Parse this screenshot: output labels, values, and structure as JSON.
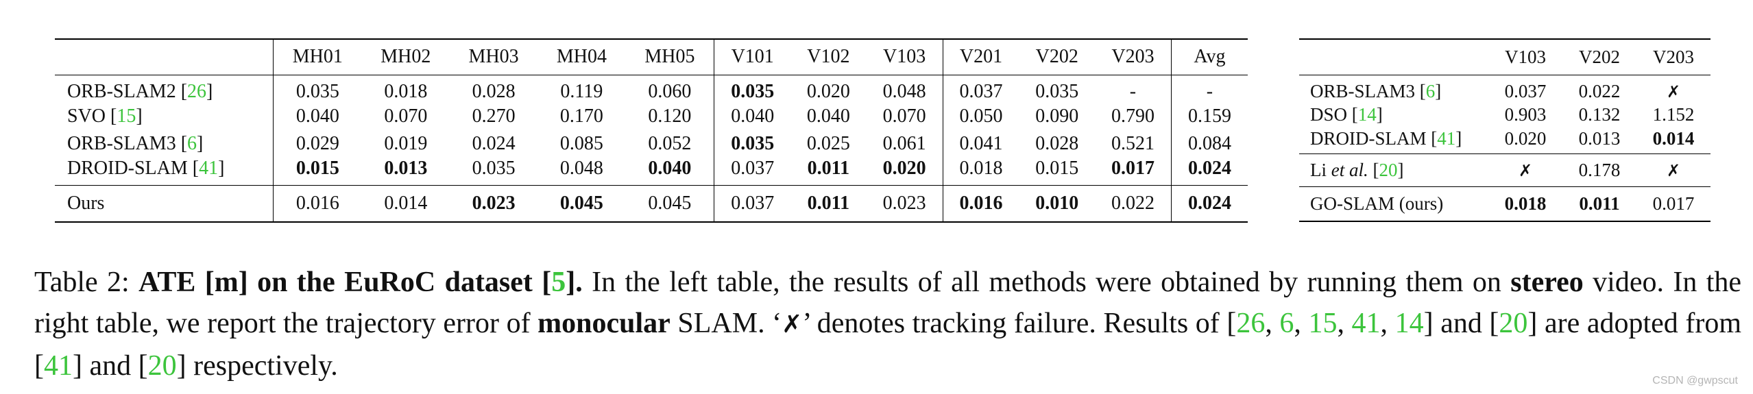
{
  "left_table": {
    "columns": [
      "MH01",
      "MH02",
      "MH03",
      "MH04",
      "MH05",
      "V101",
      "V102",
      "V103",
      "V201",
      "V202",
      "V203",
      "Avg"
    ],
    "rows": [
      {
        "method": "ORB-SLAM2",
        "ref": "26",
        "values": [
          "0.035",
          "0.018",
          "0.028",
          "0.119",
          "0.060",
          "0.035",
          "0.020",
          "0.048",
          "0.037",
          "0.035",
          "-",
          "-"
        ],
        "bold": [
          5
        ]
      },
      {
        "method": "SVO",
        "ref": "15",
        "values": [
          "0.040",
          "0.070",
          "0.270",
          "0.170",
          "0.120",
          "0.040",
          "0.040",
          "0.070",
          "0.050",
          "0.090",
          "0.790",
          "0.159"
        ],
        "bold": []
      },
      {
        "method": "ORB-SLAM3",
        "ref": "6",
        "values": [
          "0.029",
          "0.019",
          "0.024",
          "0.085",
          "0.052",
          "0.035",
          "0.025",
          "0.061",
          "0.041",
          "0.028",
          "0.521",
          "0.084"
        ],
        "bold": [
          5
        ]
      },
      {
        "method": "DROID-SLAM",
        "ref": "41",
        "values": [
          "0.015",
          "0.013",
          "0.035",
          "0.048",
          "0.040",
          "0.037",
          "0.011",
          "0.020",
          "0.018",
          "0.015",
          "0.017",
          "0.024"
        ],
        "bold": [
          0,
          1,
          4,
          6,
          7,
          10,
          11
        ]
      }
    ],
    "ours": {
      "method": "Ours",
      "values": [
        "0.016",
        "0.014",
        "0.023",
        "0.045",
        "0.045",
        "0.037",
        "0.011",
        "0.023",
        "0.016",
        "0.010",
        "0.022",
        "0.024"
      ],
      "bold": [
        2,
        3,
        6,
        8,
        9,
        11
      ]
    }
  },
  "right_table": {
    "columns": [
      "V103",
      "V202",
      "V203"
    ],
    "group1": [
      {
        "method": "ORB-SLAM3",
        "ref": "6",
        "values": [
          "0.037",
          "0.022",
          "✗"
        ],
        "bold": []
      },
      {
        "method": "DSO",
        "ref": "14",
        "values": [
          "0.903",
          "0.132",
          "1.152"
        ],
        "bold": []
      },
      {
        "method": "DROID-SLAM",
        "ref": "41",
        "values": [
          "0.020",
          "0.013",
          "0.014"
        ],
        "bold": [
          2
        ]
      }
    ],
    "group2": {
      "method_pre": "Li",
      "method_it": "et al.",
      "ref": "20",
      "values": [
        "✗",
        "0.178",
        "✗"
      ]
    },
    "group3": {
      "method": "GO-SLAM (ours)",
      "values": [
        "0.018",
        "0.011",
        "0.017"
      ],
      "bold": [
        0,
        1
      ]
    }
  },
  "caption": {
    "label": "Table 2:",
    "title": "ATE [m] on the EuRoC dataset [",
    "title_ref": "5",
    "title_end": "].",
    "text1": " In the left table, the results of all methods were obtained by running them on ",
    "stereo": "stereo",
    "text2": " video. In the right table, we report the trajectory error of ",
    "monocular": "monocular",
    "text3": " SLAM. ‘",
    "cross": "✗",
    "text4": "’ denotes tracking failure. Results of [",
    "refs_a": [
      "26",
      "6",
      "15",
      "41",
      "14"
    ],
    "text5": "] and [",
    "ref_b": "20",
    "text6": "] are adopted from [",
    "ref_c": "41",
    "text7": "] and [",
    "ref_d": "20",
    "text8": "] respectively."
  },
  "watermark": "CSDN @gwpscut"
}
